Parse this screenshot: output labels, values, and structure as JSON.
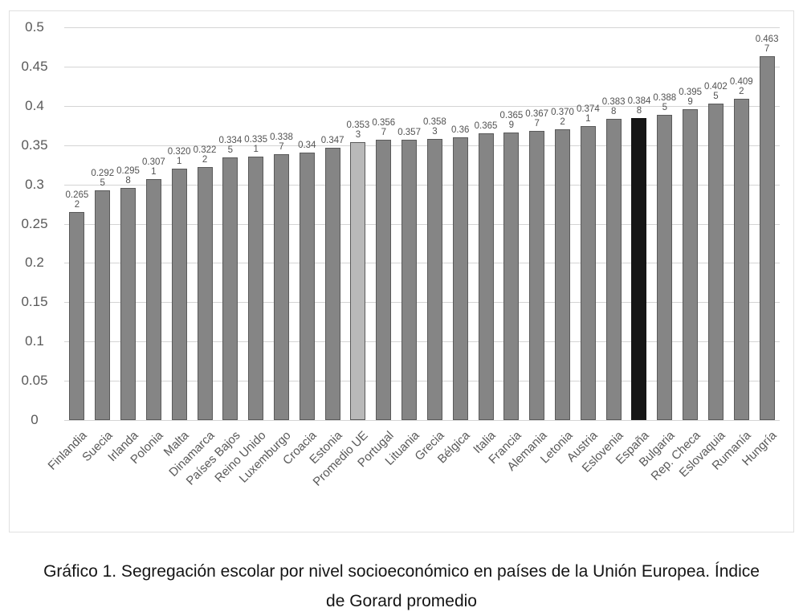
{
  "figure": {
    "caption_line1": "Gráfico 1. Segregación escolar por nivel socioeconómico en países de la Unión Europea. Índice",
    "caption_line2": "de Gorard promedio"
  },
  "colors": {
    "bar_default": "#858585",
    "bar_border": "#5a5a5a",
    "bar_average_highlight": "#b9b9b9",
    "bar_spain_highlight": "#161616",
    "gridline": "#d4d4d4",
    "frame_border": "#e0e0e0",
    "axis_text": "#595959",
    "value_label_text": "#525252"
  },
  "y_axis": {
    "tick_labels": [
      "0.5",
      "0.45",
      "0.4",
      "0.35",
      "0.3",
      "0.25",
      "0.2",
      "0.15",
      "0.1",
      "0.05",
      "0"
    ],
    "tick_values": [
      0.5,
      0.45,
      0.4,
      0.35,
      0.3,
      0.25,
      0.2,
      0.15,
      0.1,
      0.05,
      0
    ]
  },
  "chart_data": {
    "type": "bar",
    "title": "",
    "xlabel": "",
    "ylabel": "",
    "ylim": [
      0,
      0.5
    ],
    "grid": "horizontal",
    "legend": "none",
    "categories": [
      "Finlandia",
      "Suecia",
      "Irlanda",
      "Polonia",
      "Malta",
      "Dinamarca",
      "Países Bajos",
      "Reino Unido",
      "Luxemburgo",
      "Croacia",
      "Estonia",
      "Promedio UE",
      "Portugal",
      "Lituania",
      "Grecia",
      "Bélgica",
      "Italia",
      "Francia",
      "Alemania",
      "Letonia",
      "Austria",
      "Eslovenia",
      "España",
      "Bulgaria",
      "Rep. Checa",
      "Eslovaquia",
      "Rumanía",
      "Hungría"
    ],
    "values": [
      0.2652,
      0.2925,
      0.2958,
      0.3071,
      0.3201,
      0.3222,
      0.3345,
      0.3351,
      0.3387,
      0.34,
      0.347,
      0.3533,
      0.3567,
      0.357,
      0.3583,
      0.36,
      0.365,
      0.3659,
      0.3677,
      0.3702,
      0.3741,
      0.3838,
      0.3848,
      0.3885,
      0.3959,
      0.4025,
      0.4092,
      0.4637
    ],
    "value_labels": [
      [
        "0.265",
        "2"
      ],
      [
        "0.292",
        "5"
      ],
      [
        "0.295",
        "8"
      ],
      [
        "0.307",
        "1"
      ],
      [
        "0.320",
        "1"
      ],
      [
        "0.322",
        "2"
      ],
      [
        "0.334",
        "5"
      ],
      [
        "0.335",
        "1"
      ],
      [
        "0.338",
        "7"
      ],
      [
        "0.34",
        ""
      ],
      [
        "0.347",
        ""
      ],
      [
        "0.353",
        "3"
      ],
      [
        "0.356",
        "7"
      ],
      [
        "0.357",
        ""
      ],
      [
        "0.358",
        "3"
      ],
      [
        "0.36",
        ""
      ],
      [
        "0.365",
        ""
      ],
      [
        "0.365",
        "9"
      ],
      [
        "0.367",
        "7"
      ],
      [
        "0.370",
        "2"
      ],
      [
        "0.374",
        "1"
      ],
      [
        "0.383",
        "8"
      ],
      [
        "0.384",
        "8"
      ],
      [
        "0.388",
        "5"
      ],
      [
        "0.395",
        "9"
      ],
      [
        "0.402",
        "5"
      ],
      [
        "0.409",
        "2"
      ],
      [
        "0.463",
        "7"
      ]
    ],
    "highlight": {
      "average_index": 11,
      "spain_index": 22
    }
  }
}
